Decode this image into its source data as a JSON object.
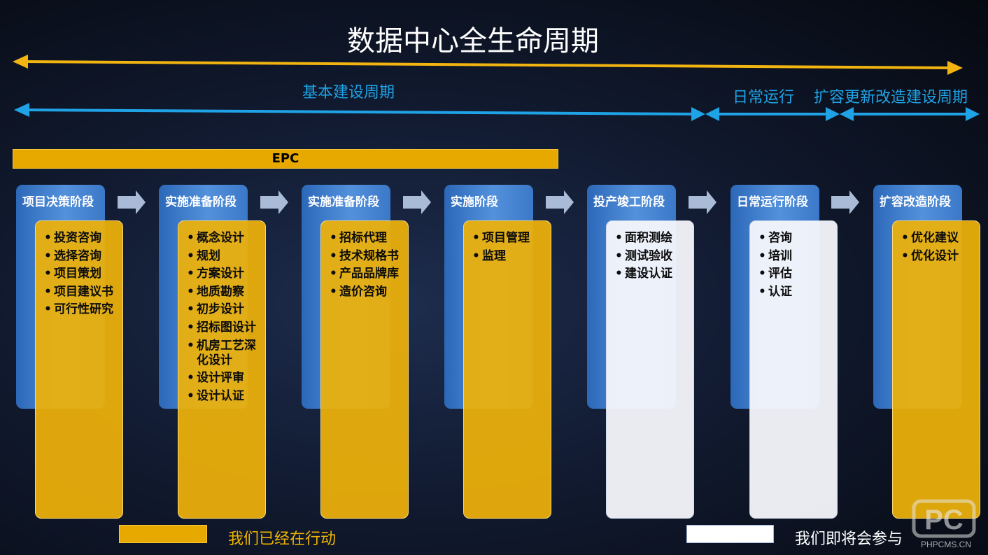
{
  "title": "数据中心全生命周期",
  "periods": {
    "basic": "基本建设周期",
    "operation": "日常运行",
    "expansion": "扩容更新改造建设周期"
  },
  "epc_label": "EPC",
  "phases": [
    {
      "label": "项目决策阶段",
      "type": "gold",
      "items": [
        "投资咨询",
        "选择咨询",
        "项目策划",
        "项目建议书",
        "可行性研究"
      ]
    },
    {
      "label": "实施准备阶段",
      "type": "gold",
      "items": [
        "概念设计",
        "规划",
        "方案设计",
        "地质勘察",
        "初步设计",
        "招标图设计",
        "机房工艺深化设计",
        "设计评审",
        "设计认证"
      ]
    },
    {
      "label": "实施准备阶段",
      "type": "gold",
      "items": [
        "招标代理",
        "技术规格书",
        "产品品牌库",
        "造价咨询"
      ]
    },
    {
      "label": "实施阶段",
      "type": "gold",
      "items": [
        "项目管理",
        "监理"
      ]
    },
    {
      "label": "投产竣工阶段",
      "type": "white",
      "items": [
        "面积测绘",
        "测试验收",
        "建设认证"
      ]
    },
    {
      "label": "日常运行阶段",
      "type": "white",
      "items": [
        "咨询",
        "培训",
        "评估",
        "认证"
      ]
    },
    {
      "label": "扩容改造阶段",
      "type": "gold",
      "items": [
        "优化建议",
        "优化设计"
      ]
    }
  ],
  "legend": {
    "active": "我们已经在行动",
    "upcoming": "我们即将会参与"
  },
  "watermark": {
    "logo": "PC",
    "text": "PHPCMS.CN"
  },
  "colors": {
    "gold": "#e7a800",
    "blue": "#1fa3e6",
    "white": "#ffffff"
  }
}
